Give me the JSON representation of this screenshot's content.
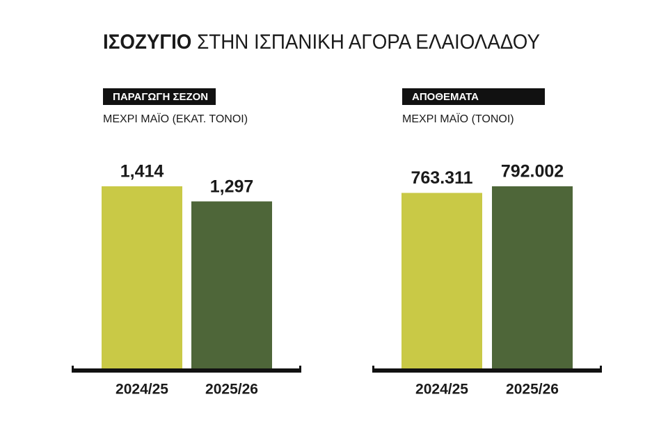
{
  "title": {
    "bold": "ΙΣΟΖΥΓΙΟ",
    "rest": "ΣΤΗΝ ΙΣΠΑΝΙΚΗ ΑΓΟΡΑ ΕΛΑΙΟΛΑΔΟΥ"
  },
  "chart_data": [
    {
      "type": "bar",
      "title": "ΠΑΡΑΓΩΓΗ ΣΕΖΟΝ",
      "subtitle": "ΜΕΧΡΙ ΜΑΪΟ (ΕΚΑΤ. ΤΟΝΟΙ)",
      "categories": [
        "2024/25",
        "2025/26"
      ],
      "values": [
        1.414,
        1.297
      ],
      "value_labels": [
        "1,414",
        "1,297"
      ],
      "colors": [
        "#c9c946",
        "#4e6639"
      ]
    },
    {
      "type": "bar",
      "title": "ΑΠΟΘΕΜΑΤΑ",
      "subtitle": "ΜΕΧΡΙ ΜΑΪΟ (ΤΟΝΟΙ)",
      "categories": [
        "2024/25",
        "2025/26"
      ],
      "values": [
        763311,
        792002
      ],
      "value_labels": [
        "763.311",
        "792.002"
      ],
      "colors": [
        "#c9c946",
        "#4e6639"
      ]
    }
  ]
}
